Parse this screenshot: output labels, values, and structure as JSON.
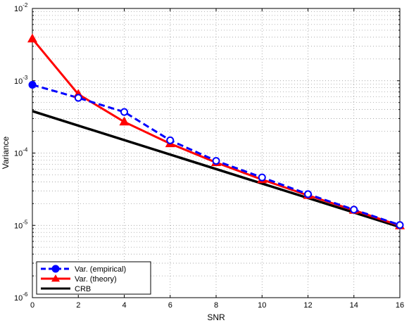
{
  "chart_data": {
    "type": "line",
    "title": "",
    "xlabel": "SNR",
    "ylabel": "Variance",
    "xlim": [
      0,
      16
    ],
    "ylim": [
      1e-06,
      0.01
    ],
    "yscale": "log",
    "grid": true,
    "legend_position": "bottom-left",
    "x_ticks": [
      "0",
      "2",
      "4",
      "6",
      "8",
      "10",
      "12",
      "14",
      "16"
    ],
    "y_ticks": [
      {
        "base": "10",
        "exp": "-6"
      },
      {
        "base": "10",
        "exp": "-5"
      },
      {
        "base": "10",
        "exp": "-4"
      },
      {
        "base": "10",
        "exp": "-3"
      },
      {
        "base": "10",
        "exp": "-2"
      }
    ],
    "series": [
      {
        "name": "Var. (empirical)",
        "color": "#0000ff",
        "line_style": "dashed",
        "marker": "circle",
        "x": [
          0,
          2,
          4,
          6,
          8,
          10,
          12,
          14,
          16
        ],
        "y": [
          0.00088,
          0.00058,
          0.00037,
          0.00015,
          7.8e-05,
          4.6e-05,
          2.7e-05,
          1.65e-05,
          1.01e-05
        ]
      },
      {
        "name": "Var. (theory)",
        "color": "#ff0000",
        "line_style": "solid",
        "marker": "triangle",
        "x": [
          0,
          2,
          4,
          6,
          8,
          10,
          12,
          14,
          16
        ],
        "y": [
          0.0038,
          0.00065,
          0.00027,
          0.000135,
          7.4e-05,
          4.3e-05,
          2.6e-05,
          1.62e-05,
          9.9e-06
        ]
      },
      {
        "name": "CRB",
        "color": "#000000",
        "line_style": "solid",
        "marker": "none",
        "x": [
          0,
          16
        ],
        "y": [
          0.00038,
          9.5e-06
        ]
      }
    ]
  }
}
